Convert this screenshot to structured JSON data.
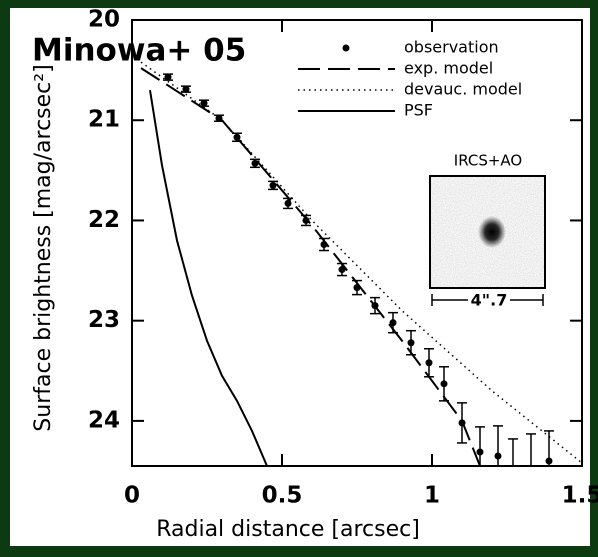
{
  "chart_data": {
    "type": "scatter",
    "title": "Minowa+ 05",
    "xlabel": "Radial distance [arcsec]",
    "ylabel": "Surface brightness [mag/arcsec²]",
    "xlim": [
      0,
      1.5
    ],
    "ylim": [
      20,
      24.45
    ],
    "y_inverted": true,
    "xticks": [
      0,
      0.5,
      1,
      1.5
    ],
    "yticks": [
      20,
      21,
      22,
      23,
      24
    ],
    "legend": "top-right",
    "annotations": {
      "inset_title": "IRCS+AO",
      "scale_bar": "4\".7"
    },
    "series": [
      {
        "name": "observation",
        "color": "#000000",
        "style": "points",
        "x": [
          0.12,
          0.18,
          0.24,
          0.29,
          0.35,
          0.41,
          0.47,
          0.52,
          0.58,
          0.64,
          0.7,
          0.75,
          0.81,
          0.87,
          0.93,
          0.99,
          1.04,
          1.1,
          1.16,
          1.22,
          1.27,
          1.33,
          1.39
        ],
        "values": [
          20.57,
          20.69,
          20.83,
          20.98,
          21.17,
          21.43,
          21.65,
          21.83,
          22.0,
          22.24,
          22.49,
          22.67,
          22.85,
          23.02,
          23.22,
          23.42,
          23.63,
          24.02,
          24.31,
          24.35,
          24.48,
          24.48,
          24.4
        ],
        "errors": [
          0.03,
          0.03,
          0.03,
          0.03,
          0.04,
          0.04,
          0.04,
          0.05,
          0.05,
          0.06,
          0.06,
          0.07,
          0.08,
          0.1,
          0.12,
          0.14,
          0.17,
          0.2,
          0.25,
          0.3,
          0.3,
          0.35,
          0.3
        ]
      },
      {
        "name": "exp. model",
        "color": "#000000",
        "style": "dashed",
        "x": [
          0.03,
          0.3,
          0.6,
          0.9,
          1.1,
          1.16
        ],
        "values": [
          20.48,
          21.0,
          22.05,
          23.2,
          24.0,
          24.45
        ]
      },
      {
        "name": "devauc. model",
        "color": "#000000",
        "style": "dotted",
        "x": [
          0.03,
          0.3,
          0.6,
          0.9,
          1.2,
          1.5
        ],
        "values": [
          20.42,
          21.0,
          22.0,
          22.9,
          23.7,
          24.42
        ]
      },
      {
        "name": "PSF",
        "color": "#000000",
        "style": "solid",
        "x": [
          0.06,
          0.1,
          0.15,
          0.2,
          0.25,
          0.3,
          0.35,
          0.4,
          0.45
        ],
        "values": [
          20.7,
          21.45,
          22.2,
          22.75,
          23.2,
          23.55,
          23.8,
          24.1,
          24.45
        ]
      }
    ]
  }
}
